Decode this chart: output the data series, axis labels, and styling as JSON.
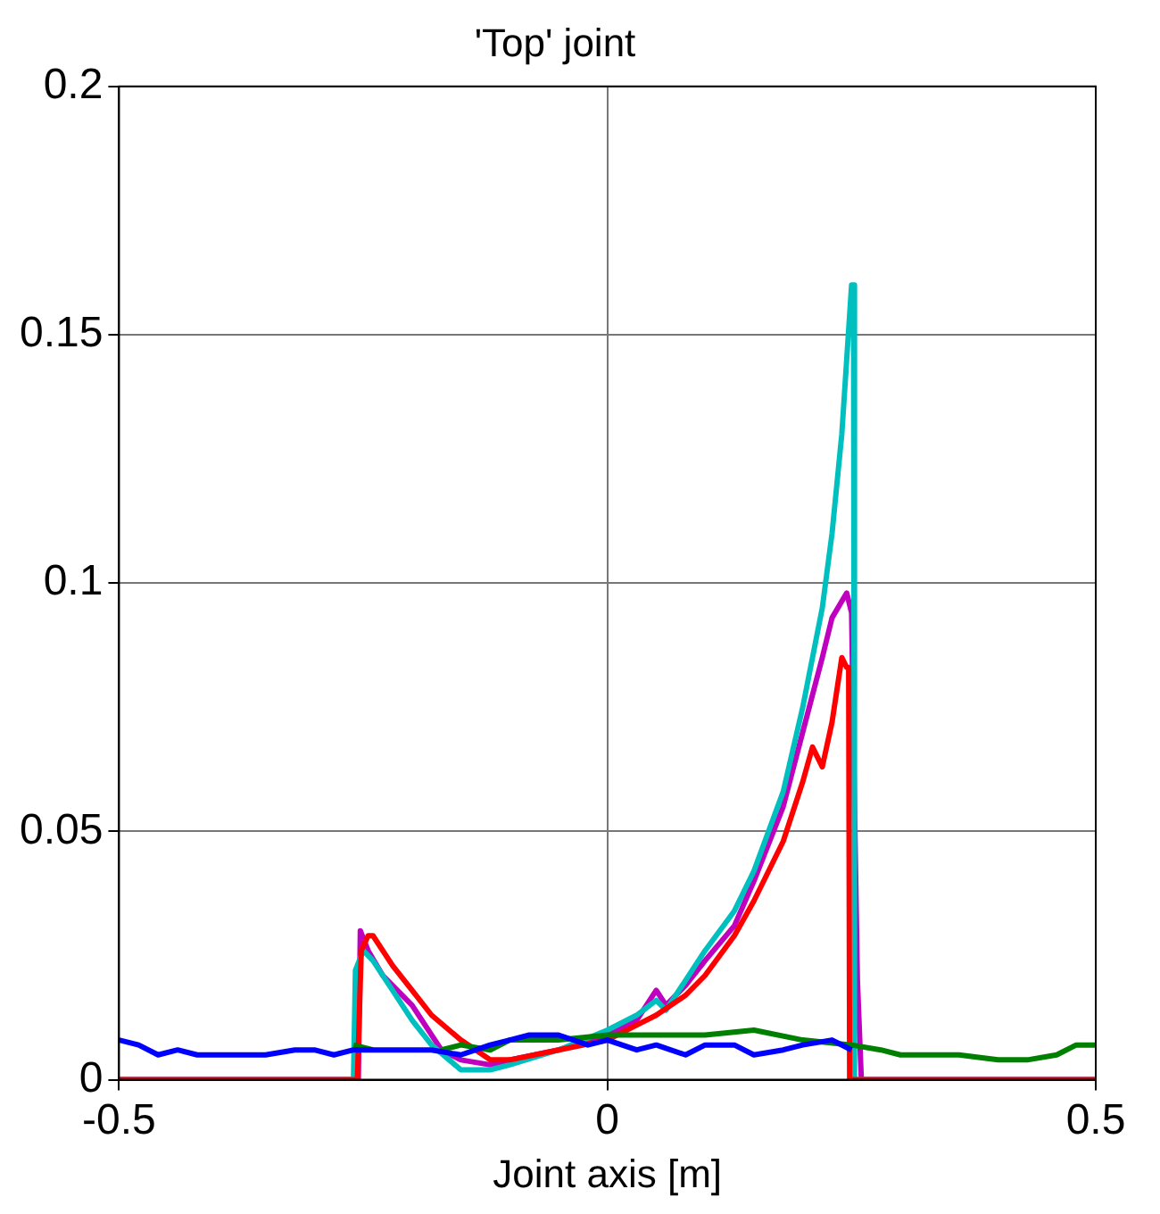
{
  "chart_data": {
    "type": "line",
    "title": "'Top' joint",
    "xlabel": "Joint axis [m]",
    "xlim": [
      -0.5,
      0.5
    ],
    "xticks": [
      -0.5,
      0,
      0.5
    ],
    "ylim": [
      0,
      0.2
    ],
    "yticks": [
      0,
      0.05,
      0.1,
      0.15,
      0.2
    ],
    "grid": true,
    "marker": "none",
    "line_style": "solid",
    "series": [
      {
        "color": "#0000ff",
        "x": [
          -0.5,
          -0.48,
          -0.46,
          -0.44,
          -0.42,
          -0.4,
          -0.37,
          -0.35,
          -0.32,
          -0.3,
          -0.28,
          -0.26,
          -0.22,
          -0.18,
          -0.15,
          -0.12,
          -0.1,
          -0.08,
          -0.05,
          -0.02,
          0,
          0.03,
          0.05,
          0.08,
          0.1,
          0.13,
          0.15,
          0.18,
          0.2,
          0.23,
          0.25
        ],
        "values": [
          0.008,
          0.007,
          0.005,
          0.006,
          0.005,
          0.005,
          0.005,
          0.005,
          0.006,
          0.006,
          0.005,
          0.006,
          0.006,
          0.006,
          0.005,
          0.007,
          0.008,
          0.009,
          0.009,
          0.007,
          0.008,
          0.006,
          0.007,
          0.005,
          0.007,
          0.007,
          0.005,
          0.006,
          0.007,
          0.008,
          0.006
        ]
      },
      {
        "color": "#008000",
        "x": [
          -0.26,
          -0.24,
          -0.2,
          -0.17,
          -0.15,
          -0.12,
          -0.1,
          -0.05,
          0,
          0.05,
          0.1,
          0.15,
          0.2,
          0.25,
          0.28,
          0.3,
          0.33,
          0.36,
          0.4,
          0.43,
          0.46,
          0.48,
          0.5
        ],
        "values": [
          0.007,
          0.006,
          null,
          0.006,
          0.007,
          0.006,
          0.008,
          0.008,
          0.009,
          0.009,
          0.009,
          0.01,
          0.008,
          0.007,
          0.006,
          0.005,
          0.005,
          0.005,
          0.004,
          0.004,
          0.005,
          0.007,
          0.007
        ]
      },
      {
        "color": "#ff0000",
        "x": [
          -0.5,
          -0.256,
          -0.252,
          -0.245,
          -0.24,
          -0.22,
          -0.2,
          -0.18,
          -0.15,
          -0.12,
          -0.1,
          -0.05,
          0,
          0.03,
          0.05,
          0.08,
          0.1,
          0.13,
          0.15,
          0.18,
          0.2,
          0.21,
          0.22,
          0.23,
          0.24,
          0.245,
          0.247,
          0.248,
          0.5
        ],
        "values": [
          0,
          0,
          0.026,
          0.029,
          0.029,
          0.023,
          0.018,
          0.013,
          0.008,
          0.004,
          0.004,
          0.006,
          0.008,
          0.011,
          0.013,
          0.017,
          0.021,
          0.029,
          0.036,
          0.048,
          0.06,
          0.067,
          0.063,
          0.072,
          0.085,
          0.083,
          0.083,
          0,
          0
        ]
      },
      {
        "color": "#00bfbf",
        "x": [
          -0.5,
          -0.26,
          -0.258,
          -0.25,
          -0.24,
          -0.22,
          -0.2,
          -0.18,
          -0.15,
          -0.12,
          -0.1,
          -0.05,
          0,
          0.03,
          0.05,
          0.06,
          0.08,
          0.1,
          0.13,
          0.15,
          0.18,
          0.2,
          0.22,
          0.23,
          0.24,
          0.245,
          0.25,
          0.252,
          0.253,
          0.5
        ],
        "values": [
          0,
          0,
          0.022,
          0.026,
          0.024,
          0.018,
          0.012,
          0.007,
          0.002,
          0.002,
          0.003,
          0.006,
          0.01,
          0.013,
          0.016,
          0.014,
          0.02,
          0.026,
          0.034,
          0.042,
          0.058,
          0.075,
          0.095,
          0.11,
          0.13,
          0.145,
          0.16,
          0.16,
          0,
          0
        ]
      },
      {
        "color": "#bf00bf",
        "x": [
          -0.5,
          -0.255,
          -0.253,
          -0.245,
          -0.23,
          -0.2,
          -0.17,
          -0.15,
          -0.12,
          -0.1,
          -0.05,
          0,
          0.03,
          0.05,
          0.06,
          0.08,
          0.1,
          0.13,
          0.15,
          0.18,
          0.2,
          0.22,
          0.23,
          0.245,
          0.25,
          0.253,
          0.256,
          0.26,
          0.5
        ],
        "values": [
          0,
          0,
          0.03,
          0.026,
          0.021,
          0.015,
          0.006,
          0.004,
          0.003,
          0.004,
          0.006,
          0.009,
          0.012,
          0.018,
          0.015,
          0.019,
          0.024,
          0.031,
          0.04,
          0.055,
          0.07,
          0.085,
          0.093,
          0.098,
          0.094,
          0.055,
          0.02,
          0,
          0
        ]
      }
    ]
  }
}
